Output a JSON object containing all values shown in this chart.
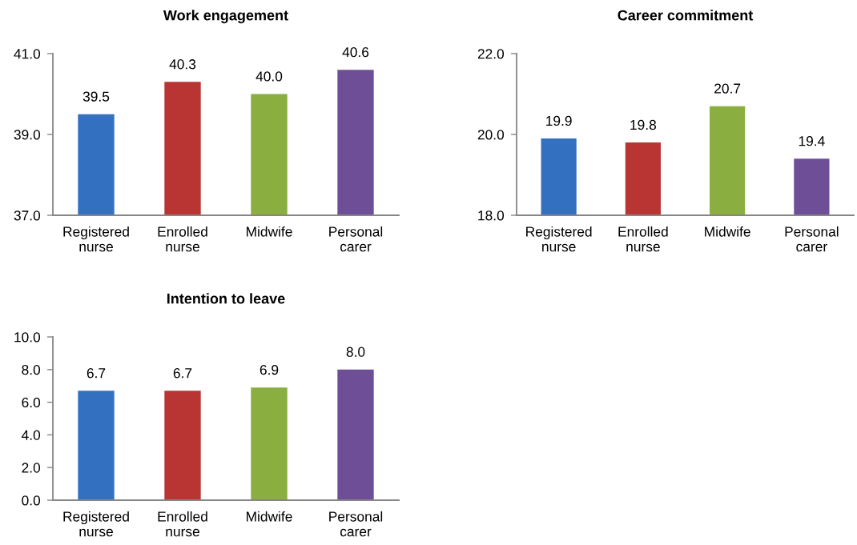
{
  "chart_data": [
    {
      "type": "bar",
      "title": "Work engagement",
      "categories": [
        "Registered\nnurse",
        "Enrolled\nnurse",
        "Midwife",
        "Personal\ncarer"
      ],
      "values": [
        39.5,
        40.3,
        40.0,
        40.6
      ],
      "value_labels": [
        "39.5",
        "40.3",
        "40.0",
        "40.6"
      ],
      "colors": [
        "#3470c0",
        "#b93533",
        "#8aae3f",
        "#6e4f97"
      ],
      "ylim": [
        37,
        41
      ],
      "yticks": [
        {
          "value": 37,
          "label": "37.0"
        },
        {
          "value": 39,
          "label": "39.0"
        },
        {
          "value": 41,
          "label": "41.0"
        }
      ]
    },
    {
      "type": "bar",
      "title": "Career commitment",
      "categories": [
        "Registered\nnurse",
        "Enrolled\nnurse",
        "Midwife",
        "Personal\ncarer"
      ],
      "values": [
        19.9,
        19.8,
        20.7,
        19.4
      ],
      "value_labels": [
        "19.9",
        "19.8",
        "20.7",
        "19.4"
      ],
      "colors": [
        "#3470c0",
        "#b93533",
        "#8aae3f",
        "#6e4f97"
      ],
      "ylim": [
        18,
        22
      ],
      "yticks": [
        {
          "value": 18,
          "label": "18.0"
        },
        {
          "value": 20,
          "label": "20.0"
        },
        {
          "value": 22,
          "label": "22.0"
        }
      ]
    },
    {
      "type": "bar",
      "title": "Intention to leave",
      "categories": [
        "Registered\nnurse",
        "Enrolled\nnurse",
        "Midwife",
        "Personal\ncarer"
      ],
      "values": [
        6.7,
        6.7,
        6.9,
        8.0
      ],
      "value_labels": [
        "6.7",
        "6.7",
        "6.9",
        "8.0"
      ],
      "colors": [
        "#3470c0",
        "#b93533",
        "#8aae3f",
        "#6e4f97"
      ],
      "ylim": [
        0,
        10
      ],
      "yticks": [
        {
          "value": 0,
          "label": "0.0"
        },
        {
          "value": 2,
          "label": "2.0"
        },
        {
          "value": 4,
          "label": "4.0"
        },
        {
          "value": 6,
          "label": "6.0"
        },
        {
          "value": 8,
          "label": "8.0"
        },
        {
          "value": 10,
          "label": "10.0"
        }
      ]
    }
  ]
}
